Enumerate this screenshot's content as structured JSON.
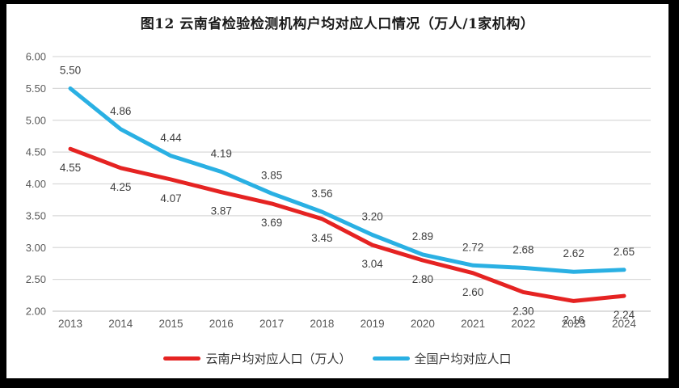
{
  "title": "图12  云南省检验检测机构户均对应人口情况（万人/1家机构）",
  "chart_data": {
    "type": "line",
    "categories": [
      "2013",
      "2014",
      "2015",
      "2016",
      "2017",
      "2018",
      "2019",
      "2020",
      "2021",
      "2022",
      "2023",
      "2024"
    ],
    "series": [
      {
        "name": "云南户均对应人口（万人）",
        "color": "#e52322",
        "values": [
          4.55,
          4.25,
          4.07,
          3.87,
          3.69,
          3.45,
          3.04,
          2.8,
          2.6,
          2.3,
          2.16,
          2.24
        ],
        "label_position": "below"
      },
      {
        "name": "全国户均对应人口",
        "color": "#2ab0e3",
        "values": [
          5.5,
          4.86,
          4.44,
          4.19,
          3.85,
          3.56,
          3.2,
          2.89,
          2.72,
          2.68,
          2.62,
          2.65
        ],
        "label_position": "above"
      }
    ],
    "xlabel": "",
    "ylabel": "",
    "ylim": [
      2.0,
      6.0
    ],
    "ytick_step": 0.5,
    "yticks": [
      "6.00",
      "5.50",
      "5.00",
      "4.50",
      "4.00",
      "3.50",
      "3.00",
      "2.50",
      "2.00"
    ],
    "grid": true,
    "legend_position": "bottom",
    "value_label_decimals": 2
  },
  "legend": {
    "items": [
      {
        "label": "云南户均对应人口（万人）",
        "color": "#e52322"
      },
      {
        "label": "全国户均对应人口",
        "color": "#2ab0e3"
      }
    ]
  },
  "style": {
    "frame_color": "#000000",
    "background_color": "#ffffff",
    "gridline_color": "#d9d9d9",
    "bottom_axis_color": "#c9c9c9",
    "axis_label_color": "#595959",
    "data_label_color": "#404040",
    "title_color": "#1a1a1a"
  }
}
